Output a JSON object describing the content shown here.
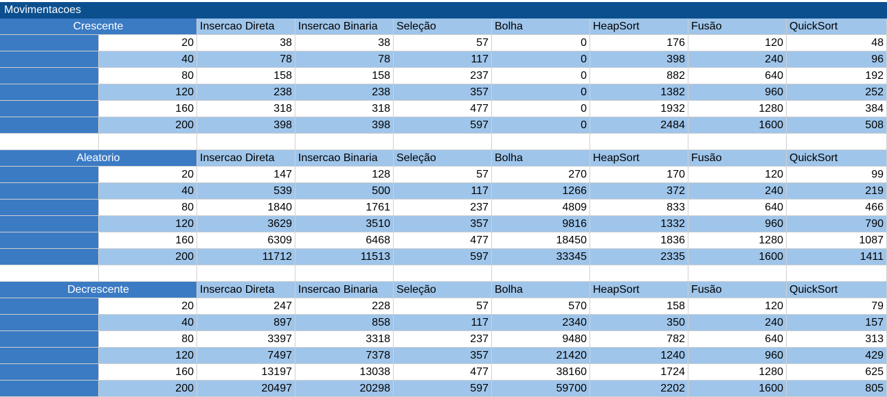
{
  "title": "Movimentacoes",
  "columns": [
    "Insercao Direta",
    "Insercao Binaria",
    "Seleção",
    "Bolha",
    "HeapSort",
    "Fusão",
    "QuickSort"
  ],
  "colors": {
    "title_bg": "#0b4f8f",
    "section_bg": "#3b7bc4",
    "band_light": "#9fc5ea",
    "band_white": "#ffffff"
  },
  "sections": [
    {
      "name": "Crescente",
      "rows": [
        {
          "n": "20",
          "values": [
            "38",
            "38",
            "57",
            "0",
            "176",
            "120",
            "48"
          ]
        },
        {
          "n": "40",
          "values": [
            "78",
            "78",
            "117",
            "0",
            "398",
            "240",
            "96"
          ]
        },
        {
          "n": "80",
          "values": [
            "158",
            "158",
            "237",
            "0",
            "882",
            "640",
            "192"
          ]
        },
        {
          "n": "120",
          "values": [
            "238",
            "238",
            "357",
            "0",
            "1382",
            "960",
            "252"
          ]
        },
        {
          "n": "160",
          "values": [
            "318",
            "318",
            "477",
            "0",
            "1932",
            "1280",
            "384"
          ]
        },
        {
          "n": "200",
          "values": [
            "398",
            "398",
            "597",
            "0",
            "2484",
            "1600",
            "508"
          ]
        }
      ]
    },
    {
      "name": "Aleatorio",
      "rows": [
        {
          "n": "20",
          "values": [
            "147",
            "128",
            "57",
            "270",
            "170",
            "120",
            "99"
          ]
        },
        {
          "n": "40",
          "values": [
            "539",
            "500",
            "117",
            "1266",
            "372",
            "240",
            "219"
          ]
        },
        {
          "n": "80",
          "values": [
            "1840",
            "1761",
            "237",
            "4809",
            "833",
            "640",
            "466"
          ]
        },
        {
          "n": "120",
          "values": [
            "3629",
            "3510",
            "357",
            "9816",
            "1332",
            "960",
            "790"
          ]
        },
        {
          "n": "160",
          "values": [
            "6309",
            "6468",
            "477",
            "18450",
            "1836",
            "1280",
            "1087"
          ]
        },
        {
          "n": "200",
          "values": [
            "11712",
            "11513",
            "597",
            "33345",
            "2335",
            "1600",
            "1411"
          ]
        }
      ]
    },
    {
      "name": "Decrescente",
      "rows": [
        {
          "n": "20",
          "values": [
            "247",
            "228",
            "57",
            "570",
            "158",
            "120",
            "79"
          ]
        },
        {
          "n": "40",
          "values": [
            "897",
            "858",
            "117",
            "2340",
            "350",
            "240",
            "157"
          ]
        },
        {
          "n": "80",
          "values": [
            "3397",
            "3318",
            "237",
            "9480",
            "782",
            "640",
            "313"
          ]
        },
        {
          "n": "120",
          "values": [
            "7497",
            "7378",
            "357",
            "21420",
            "1240",
            "960",
            "429"
          ]
        },
        {
          "n": "160",
          "values": [
            "13197",
            "13038",
            "477",
            "38160",
            "1724",
            "1280",
            "625"
          ]
        },
        {
          "n": "200",
          "values": [
            "20497",
            "20298",
            "597",
            "59700",
            "2202",
            "1600",
            "805"
          ]
        }
      ]
    }
  ]
}
